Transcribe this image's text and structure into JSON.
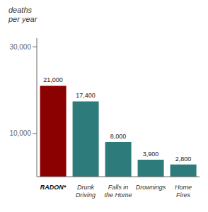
{
  "chart_data": {
    "type": "bar",
    "categories": [
      "RADON*",
      "Drunk\nDriving",
      "Falls in\nthe Home",
      "Drownings",
      "Home\nFires"
    ],
    "values": [
      21000,
      17400,
      8000,
      3900,
      2800
    ],
    "value_labels": [
      "21,000",
      "17,400",
      "8,000",
      "3,900",
      "2,800"
    ],
    "data_labels": true,
    "colors": [
      "#8B0000",
      "#2E7B7B",
      "#2E7B7B",
      "#2E7B7B",
      "#2E7B7B"
    ],
    "ylabel": "deaths\nper year",
    "ylim": [
      0,
      32000
    ],
    "yticks": [
      {
        "value": 10000,
        "label": "10,000"
      },
      {
        "value": 30000,
        "label": "30,000"
      }
    ],
    "grid": false
  }
}
